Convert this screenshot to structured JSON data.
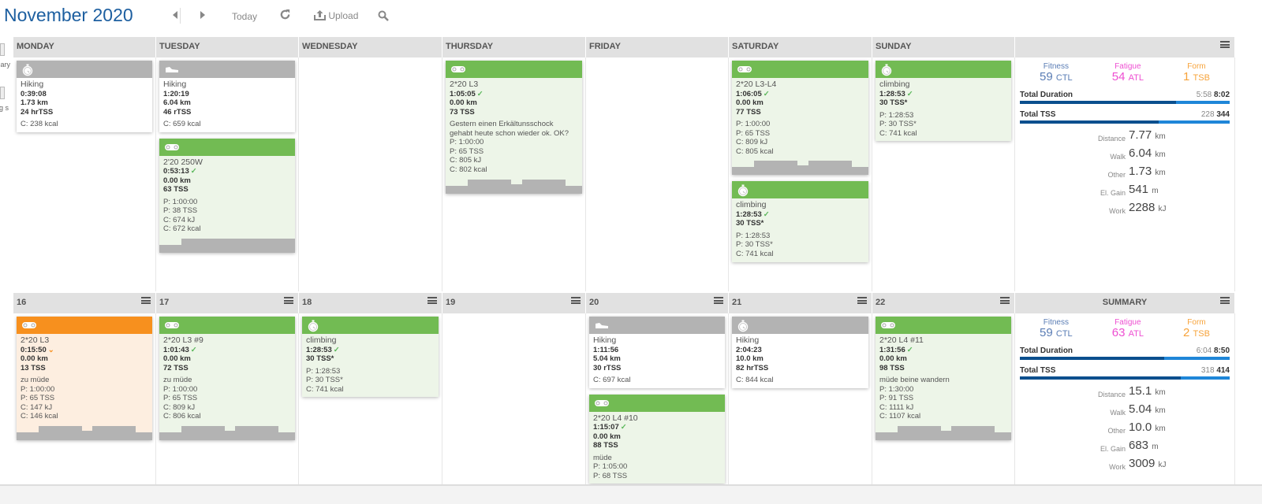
{
  "header": {
    "month": "November",
    "year": "2020",
    "today": "Today",
    "upload": "Upload",
    "icons": [
      "prev-arrow",
      "next-arrow",
      "refresh-icon",
      "upload-icon",
      "search-icon"
    ]
  },
  "sidebar": {
    "items": [
      {
        "label": "out ary",
        "icon": "workout-library-icon"
      },
      {
        "label": "ng s",
        "icon": "training-plans-icon"
      }
    ]
  },
  "colors": {
    "green": "#72bb53",
    "gray": "#b3b3b3",
    "orange": "#f7901e",
    "greenBody": "#edf5e8",
    "orangeBody": "#fdeee0",
    "fitness": "#5a7db5",
    "fatigue": "#ee4fd2",
    "form": "#f7a33a"
  },
  "weeks": [
    {
      "days": [
        "MONDAY",
        "TUESDAY",
        "WEDNESDAY",
        "THURSDAY",
        "FRIDAY",
        "SATURDAY",
        "SUNDAY"
      ],
      "summary_label": "",
      "cards": [
        [
          {
            "color": "gray",
            "icon": "stopwatch",
            "title": "Hiking",
            "lines": [
              "0:39:08",
              "1.73 km",
              "24 hrTSS"
            ],
            "details": [
              "C: 238 kcal"
            ]
          }
        ],
        [
          {
            "color": "gray",
            "icon": "shoe",
            "title": "Hiking",
            "lines": [
              "1:20:19",
              "6.04 km",
              "46 rTSS"
            ],
            "details": [
              "C: 659 kcal"
            ]
          },
          {
            "color": "green",
            "icon": "bike",
            "title": "2'20 250W",
            "lines": [
              "0:53:13",
              "0.00 km",
              "63 TSS"
            ],
            "mark": "check",
            "details": [
              "P: 1:00:00",
              "P: 38 TSS",
              "C: 674 kJ",
              "C: 672 kcal"
            ],
            "graph": "a"
          }
        ],
        [],
        [
          {
            "color": "green",
            "icon": "bike",
            "title": "2*20 L3",
            "lines": [
              "1:05:05",
              "0.00 km",
              "73 TSS"
            ],
            "mark": "check",
            "details": [
              "Gestern einen Erkältunsschock",
              "gehabt heute schon wieder ok. OK?",
              "P: 1:00:00",
              "P: 65 TSS",
              "C: 805 kJ",
              "C: 802 kcal"
            ],
            "graph": "b"
          }
        ],
        [],
        [
          {
            "color": "green",
            "icon": "bike",
            "title": "2*20 L3-L4",
            "lines": [
              "1:06:05",
              "0.00 km",
              "77 TSS"
            ],
            "mark": "check",
            "details": [
              "P: 1:00:00",
              "P: 65 TSS",
              "C: 809 kJ",
              "C: 805 kcal"
            ],
            "graph": "b"
          },
          {
            "color": "green",
            "icon": "stopwatch",
            "title": "climbing",
            "lines": [
              "1:28:53",
              "30 TSS*"
            ],
            "mark": "check",
            "details": [
              "P: 1:28:53",
              "P: 30 TSS*",
              "C: 741 kcal"
            ]
          }
        ],
        [
          {
            "color": "green",
            "icon": "stopwatch",
            "title": "climbing",
            "lines": [
              "1:28:53",
              "30 TSS*"
            ],
            "mark": "check",
            "details": [
              "P: 1:28:53",
              "P: 30 TSS*",
              "C: 741 kcal"
            ]
          }
        ]
      ],
      "summary": {
        "fitness_label": "Fitness",
        "fitness": "59",
        "ctl": "CTL",
        "fatigue_label": "Fatigue",
        "fatigue": "54",
        "atl": "ATL",
        "form_label": "Form",
        "form": "1",
        "tsb": "TSB",
        "duration_label": "Total Duration",
        "duration_done": "5:58",
        "duration_planned": "8:02",
        "duration_fraction": 0.743,
        "tss_label": "Total TSS",
        "tss_done": "228",
        "tss_planned": "344",
        "tss_fraction": 0.663,
        "stats": [
          {
            "k": "Distance",
            "v": "7.77",
            "u": "km"
          },
          {
            "k": "Walk",
            "v": "6.04",
            "u": "km"
          },
          {
            "k": "Other",
            "v": "1.73",
            "u": "km"
          },
          {
            "k": "El. Gain",
            "v": "541",
            "u": "m"
          },
          {
            "k": "Work",
            "v": "2288",
            "u": "kJ"
          }
        ]
      }
    },
    {
      "days": [
        "16",
        "17",
        "18",
        "19",
        "20",
        "21",
        "22"
      ],
      "summary_label": "SUMMARY",
      "cards": [
        [
          {
            "color": "orange",
            "icon": "bike",
            "title": "2*20 L3",
            "lines": [
              "0:15:50",
              "0.00 km",
              "13 TSS"
            ],
            "mark": "chevron",
            "details": [
              "zu müde",
              "P: 1:00:00",
              "P: 65 TSS",
              "C: 147 kJ",
              "C: 146 kcal"
            ],
            "graph": "b"
          }
        ],
        [
          {
            "color": "green",
            "icon": "bike",
            "title": "2*20 L3 #9",
            "lines": [
              "1:01:43",
              "0.00 km",
              "72 TSS"
            ],
            "mark": "check",
            "details": [
              "zu müde",
              "P: 1:00:00",
              "P: 65 TSS",
              "C: 809 kJ",
              "C: 806 kcal"
            ],
            "graph": "b"
          }
        ],
        [
          {
            "color": "green",
            "icon": "stopwatch",
            "title": "climbing",
            "lines": [
              "1:28:53",
              "30 TSS*"
            ],
            "mark": "check",
            "details": [
              "P: 1:28:53",
              "P: 30 TSS*",
              "C: 741 kcal"
            ]
          }
        ],
        [],
        [
          {
            "color": "gray",
            "icon": "shoe",
            "title": "Hiking",
            "lines": [
              "1:11:56",
              "5.04 km",
              "30 rTSS"
            ],
            "details": [
              "C: 697 kcal"
            ]
          },
          {
            "color": "green",
            "icon": "bike",
            "title": "2*20 L4 #10",
            "lines": [
              "1:15:07",
              "0.00 km",
              "88 TSS"
            ],
            "mark": "check",
            "details": [
              "müde",
              "P: 1:05:00",
              "P: 68 TSS"
            ]
          }
        ],
        [
          {
            "color": "gray",
            "icon": "stopwatch",
            "title": "Hiking",
            "lines": [
              "2:04:23",
              "10.0 km",
              "82 hrTSS"
            ],
            "details": [
              "C: 844 kcal"
            ]
          }
        ],
        [
          {
            "color": "green",
            "icon": "bike",
            "title": "2*20 L4 #11",
            "lines": [
              "1:31:56",
              "0.00 km",
              "98 TSS"
            ],
            "mark": "check",
            "details": [
              "müde beine wandern",
              "P: 1:30:00",
              "P: 91 TSS",
              "C: 1111 kJ",
              "C: 1107 kcal"
            ],
            "graph": "b"
          }
        ]
      ],
      "summary": {
        "fitness_label": "Fitness",
        "fitness": "59",
        "ctl": "CTL",
        "fatigue_label": "Fatigue",
        "fatigue": "63",
        "atl": "ATL",
        "form_label": "Form",
        "form": "2",
        "tsb": "TSB",
        "duration_label": "Total Duration",
        "duration_done": "6:04",
        "duration_planned": "8:50",
        "duration_fraction": 0.687,
        "tss_label": "Total TSS",
        "tss_done": "318",
        "tss_planned": "414",
        "tss_fraction": 0.768,
        "stats": [
          {
            "k": "Distance",
            "v": "15.1",
            "u": "km"
          },
          {
            "k": "Walk",
            "v": "5.04",
            "u": "km"
          },
          {
            "k": "Other",
            "v": "10.0",
            "u": "km"
          },
          {
            "k": "El. Gain",
            "v": "683",
            "u": "m"
          },
          {
            "k": "Work",
            "v": "3009",
            "u": "kJ"
          }
        ]
      }
    }
  ]
}
